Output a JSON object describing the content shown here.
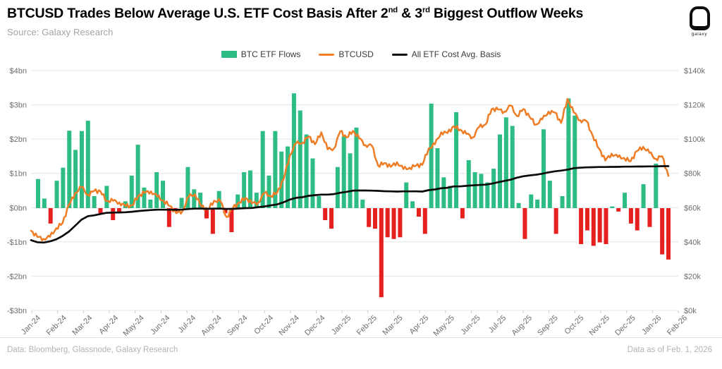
{
  "header": {
    "title": {
      "prefix": "BTCUSD Trades Below Average U.S. ETF Cost Basis After 2",
      "sup1": "nd",
      "mid": " & 3",
      "sup2": "rd",
      "suffix": " Biggest Outflow Weeks"
    },
    "source": "Source: Galaxy Research",
    "logo_text": "galaxy"
  },
  "legend": {
    "items": [
      {
        "label": "BTC ETF Flows",
        "swatch": "bar",
        "color": "#2dbd84"
      },
      {
        "label": "BTCUSD",
        "swatch": "line",
        "color": "#ee7d26"
      },
      {
        "label": "All ETF Cost Avg. Basis",
        "swatch": "line",
        "color": "#0b0b0b"
      }
    ]
  },
  "footer": {
    "left": "Data: Bloomberg, Glassnode, Galaxy Research",
    "right": "Data as of Feb. 1, 2026"
  },
  "chart_data": {
    "type": "combo",
    "frequency": "weekly",
    "x_start": "Jan-2024",
    "x_end": "Feb-2026",
    "grid": "horizontal",
    "legend_position": "top-center",
    "x_tick_labels": [
      "Jan-24",
      "Feb-24",
      "Mar-24",
      "Apr-24",
      "May-24",
      "Jun-24",
      "Jul-24",
      "Aug-24",
      "Sep-24",
      "Oct-24",
      "Nov-24",
      "Dec-24",
      "Jan-25",
      "Feb-25",
      "Mar-25",
      "Apr-25",
      "May-25",
      "Jun-25",
      "Jul-25",
      "Aug-25",
      "Sep-25",
      "Oct-25",
      "Nov-25",
      "Dec-25",
      "Jan-26",
      "Feb-26"
    ],
    "left_axis": {
      "title": "",
      "labels": [
        "$4bn",
        "$3bn",
        "$2bn",
        "$1bn",
        "$0bn",
        "-$1bn",
        "-$2bn",
        "-$3bn"
      ],
      "max": 4,
      "min": -3,
      "unit": "$bn"
    },
    "right_axis": {
      "title": "",
      "labels": [
        "$140k",
        "$120k",
        "$100k",
        "$80k",
        "$60k",
        "$40k",
        "$20k",
        "$0k"
      ],
      "max": 140,
      "min": 0,
      "unit": "$k"
    },
    "series": [
      {
        "name": "BTC ETF Flows",
        "type": "bar",
        "axis": "left",
        "unit": "$bn",
        "positive_color": "#2dbd84",
        "negative_color": "#e6201f",
        "values": [
          0.85,
          0.28,
          -0.45,
          0.8,
          1.18,
          2.26,
          1.7,
          2.25,
          2.55,
          0.35,
          -0.15,
          0.65,
          -0.35,
          -0.15,
          0.2,
          0.95,
          1.85,
          0.6,
          0.25,
          1.05,
          0.8,
          -0.55,
          -0.1,
          0.3,
          1.2,
          0.55,
          0.45,
          -0.3,
          -0.75,
          0.5,
          -0.15,
          -0.7,
          0.4,
          1.05,
          1.1,
          0.45,
          2.25,
          0.95,
          2.25,
          1.65,
          1.8,
          3.35,
          2.85,
          2.15,
          1.45,
          0.35,
          -0.35,
          -0.6,
          1.2,
          2.1,
          1.6,
          2.35,
          0.25,
          -0.55,
          -0.6,
          -2.6,
          -0.85,
          -0.9,
          -0.85,
          0.75,
          0.2,
          -0.25,
          -0.75,
          3.05,
          1.75,
          0.9,
          0.65,
          2.8,
          -0.3,
          1.4,
          1.05,
          1.0,
          0.75,
          1.15,
          2.15,
          2.65,
          2.4,
          0.15,
          -0.9,
          0.4,
          0.25,
          2.3,
          0.8,
          -0.75,
          0.35,
          3.2,
          2.7,
          -1.05,
          -0.65,
          -1.1,
          -1.0,
          -1.05,
          0.05,
          -0.1,
          0.45,
          -0.45,
          -0.65,
          0.7,
          -0.55,
          1.3,
          -1.35,
          -1.5
        ]
      },
      {
        "name": "BTCUSD",
        "type": "line",
        "axis": "right",
        "unit": "$k",
        "color": "#ee7d26",
        "values": [
          46.5,
          42.9,
          41.8,
          43.0,
          48.0,
          51.0,
          61.5,
          68.5,
          72.0,
          67.5,
          69.8,
          69.5,
          63.9,
          64.0,
          63.0,
          60.8,
          61.3,
          66.9,
          68.7,
          69.5,
          66.5,
          64.0,
          61.0,
          56.8,
          58.0,
          66.5,
          67.8,
          60.7,
          58.8,
          64.0,
          63.8,
          54.5,
          59.8,
          63.0,
          65.7,
          62.5,
          63.0,
          68.5,
          66.7,
          68.8,
          76.3,
          90.5,
          97.5,
          97.9,
          101.5,
          97.0,
          104.0,
          94.0,
          94.5,
          104.5,
          101.0,
          104.8,
          100.5,
          96.5,
          96.2,
          84.5,
          86.0,
          83.8,
          86.5,
          82.5,
          83.3,
          84.5,
          85.0,
          94.5,
          97.0,
          104.0,
          103.5,
          107.5,
          105.5,
          103.0,
          101.0,
          107.0,
          108.5,
          117.5,
          117.3,
          116.0,
          119.5,
          113.5,
          117.5,
          113.0,
          108.5,
          111.5,
          116.0,
          115.5,
          109.5,
          123.5,
          115.5,
          111.0,
          110.5,
          102.0,
          94.5,
          87.5,
          91.5,
          89.5,
          89.0,
          87.0,
          93.0,
          95.5,
          92.0,
          88.5,
          90.0,
          78.5
        ]
      },
      {
        "name": "All ETF Cost Avg. Basis",
        "type": "line",
        "axis": "right",
        "unit": "$k",
        "color": "#0b0b0b",
        "values": [
          41.0,
          39.8,
          39.6,
          40.3,
          41.5,
          43.5,
          46.0,
          49.5,
          53.0,
          55.0,
          55.5,
          56.3,
          57.0,
          57.1,
          57.2,
          57.3,
          57.6,
          58.0,
          58.3,
          58.6,
          58.8,
          58.8,
          58.8,
          58.7,
          58.9,
          59.2,
          59.4,
          59.4,
          59.3,
          59.4,
          59.4,
          59.2,
          59.3,
          59.5,
          59.7,
          59.8,
          60.3,
          60.7,
          61.3,
          61.9,
          63.1,
          64.7,
          65.7,
          66.1,
          66.9,
          67.3,
          67.6,
          67.6,
          67.9,
          68.7,
          69.2,
          69.9,
          70.0,
          70.0,
          69.9,
          69.8,
          69.6,
          69.5,
          69.4,
          69.5,
          69.5,
          69.5,
          69.4,
          70.2,
          70.6,
          71.3,
          71.6,
          72.4,
          72.4,
          72.7,
          73.0,
          73.2,
          73.4,
          74.0,
          74.8,
          75.6,
          76.3,
          77.5,
          78.3,
          78.8,
          79.2,
          79.8,
          80.6,
          81.2,
          81.6,
          82.2,
          83.0,
          83.3,
          83.5,
          83.6,
          83.7,
          83.7,
          83.8,
          83.8,
          83.9,
          83.9,
          84.0,
          84.0,
          84.1,
          84.1,
          84.2,
          84.2
        ]
      }
    ],
    "colors": {
      "grid": "#e4e4e4",
      "axis_text": "#6e6e6e",
      "tick": "#c9c9c9"
    }
  }
}
